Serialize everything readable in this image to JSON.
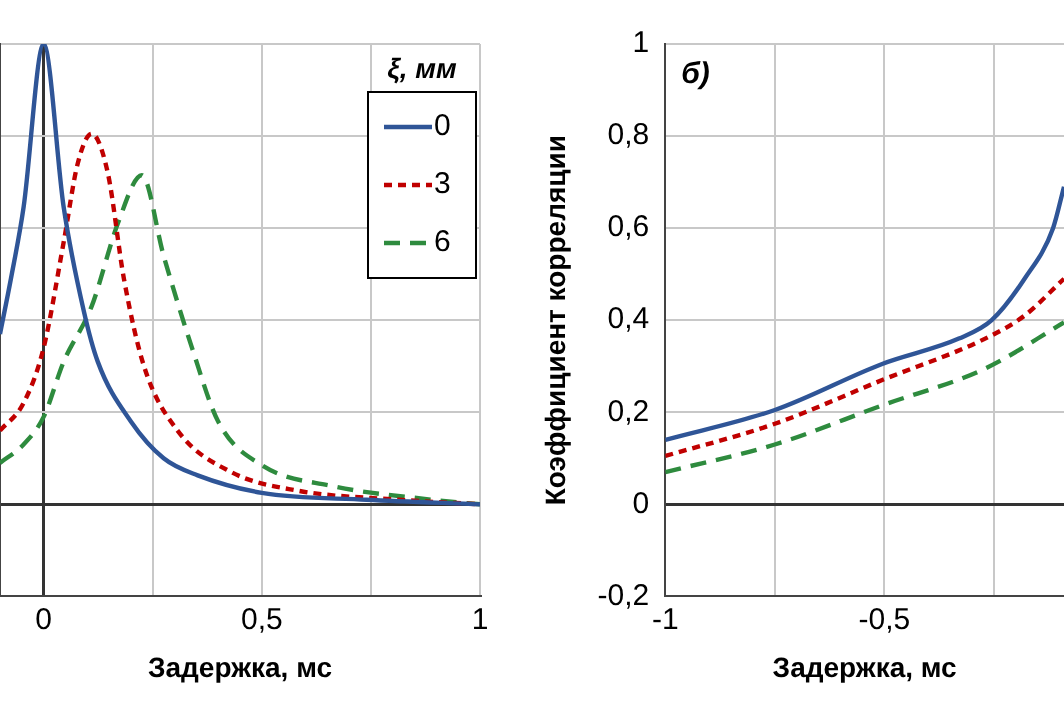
{
  "chart_data": [
    {
      "type": "line",
      "xlabel": "Задержка, мс",
      "legend_title": "ξ, мм",
      "legend": "top right",
      "grid": true,
      "marker": "none",
      "tick_labels": "x",
      "xlim": [
        -0.1,
        1
      ],
      "xticks": [
        0,
        {
          "value": 0.25,
          "label": null
        },
        {
          "value": 0.5,
          "label": "0,5"
        },
        {
          "value": 0.75,
          "label": null
        },
        1
      ],
      "ylim": [
        -0.2,
        1
      ],
      "yticks": [
        {
          "value": -0.2,
          "label": null
        },
        {
          "value": 0,
          "label": null
        },
        {
          "value": 0.2,
          "label": null
        },
        {
          "value": 0.4,
          "label": null
        },
        {
          "value": 0.6,
          "label": null
        },
        {
          "value": 0.8,
          "label": null
        },
        {
          "value": 1,
          "label": null
        }
      ],
      "series": [
        {
          "name": "0",
          "color": "#2f5597",
          "line_style": "solid",
          "x": [
            -0.1,
            -0.075,
            -0.046,
            0,
            0.046,
            0.092,
            0.124,
            0.2,
            0.275,
            0.353,
            0.5,
            0.74,
            1
          ],
          "values": [
            0.37,
            0.49,
            0.645,
            1,
            0.645,
            0.42,
            0.31,
            0.18,
            0.1,
            0.063,
            0.025,
            0.01,
            0
          ]
        },
        {
          "name": "3",
          "color": "#c00000",
          "line_style": "dashed",
          "x": [
            -0.1,
            -0.046,
            0,
            0.046,
            0.078,
            0.11,
            0.147,
            0.184,
            0.23,
            0.307,
            0.43,
            0.58,
            0.815,
            1
          ],
          "values": [
            0.16,
            0.22,
            0.34,
            0.57,
            0.74,
            0.805,
            0.72,
            0.49,
            0.3,
            0.16,
            0.07,
            0.03,
            0.01,
            0
          ]
        },
        {
          "name": "6",
          "color": "#2e8b3e",
          "line_style": "dashed",
          "x": [
            -0.1,
            -0.046,
            0,
            0.046,
            0.11,
            0.17,
            0.225,
            0.275,
            0.34,
            0.4,
            0.5,
            0.66,
            0.89,
            1
          ],
          "values": [
            0.09,
            0.13,
            0.19,
            0.31,
            0.43,
            0.61,
            0.715,
            0.54,
            0.34,
            0.18,
            0.085,
            0.04,
            0.01,
            0
          ]
        }
      ]
    },
    {
      "type": "line",
      "xlabel": "Задержка, мс",
      "ylabel": "Коэффициент корреляции",
      "annotations": [
        "б)"
      ],
      "grid": true,
      "marker": "none",
      "xlim": [
        -1,
        -0.09
      ],
      "xticks": [
        -1,
        {
          "value": -0.75,
          "label": null
        },
        {
          "value": -0.5,
          "label": "-0,5"
        },
        {
          "value": -0.25,
          "label": null
        }
      ],
      "ylim": [
        -0.2,
        1
      ],
      "yticks": [
        {
          "value": -0.2,
          "label": "-0,2"
        },
        0,
        {
          "value": 0.2,
          "label": "0,2"
        },
        {
          "value": 0.4,
          "label": "0,4"
        },
        {
          "value": 0.6,
          "label": "0,6"
        },
        {
          "value": 0.8,
          "label": "0,8"
        },
        1
      ],
      "series": [
        {
          "color": "#2f5597",
          "line_style": "solid",
          "x": [
            -1,
            -0.75,
            -0.505,
            -0.33,
            -0.255,
            -0.18,
            -0.115,
            -0.09
          ],
          "values": [
            0.14,
            0.205,
            0.305,
            0.36,
            0.4,
            0.49,
            0.6,
            0.69
          ]
        },
        {
          "color": "#c00000",
          "line_style": "dashed",
          "x": [
            -1,
            -0.75,
            -0.505,
            -0.27,
            -0.18,
            -0.09
          ],
          "values": [
            0.105,
            0.175,
            0.27,
            0.36,
            0.41,
            0.49
          ]
        },
        {
          "color": "#2e8b3e",
          "line_style": "dashed",
          "x": [
            -1,
            -0.75,
            -0.505,
            -0.27,
            -0.09
          ],
          "values": [
            0.07,
            0.13,
            0.215,
            0.295,
            0.395
          ]
        }
      ]
    }
  ]
}
